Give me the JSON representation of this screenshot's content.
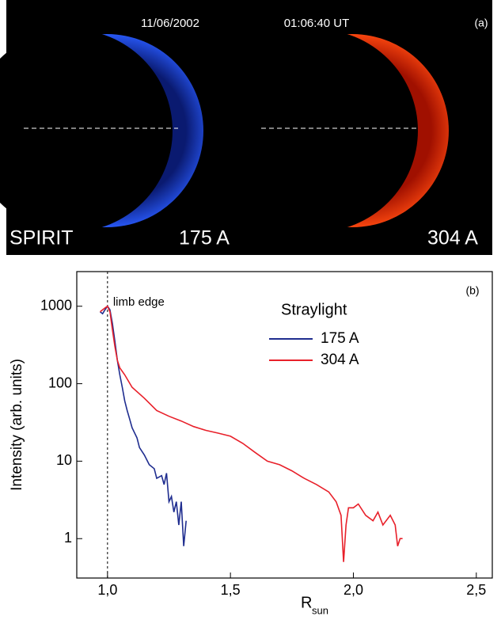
{
  "image_panel": {
    "date": "11/06/2002",
    "time": "01:06:40 UT",
    "label": "(a)",
    "instrument": "SPIRIT",
    "channels": [
      "175 A",
      "304 A"
    ]
  },
  "chart_data": {
    "type": "line",
    "label": "(b)",
    "ylabel": "Intensity (arb. units)",
    "xlabel": "R",
    "xlabel_subscript": "sun",
    "annotation": "limb edge",
    "limb_x": 1.0,
    "legend_title": "Straylight",
    "log_y": true,
    "xlim": [
      0.875,
      2.565
    ],
    "ylim": [
      0.31,
      2800
    ],
    "xticks": [
      {
        "value": 1.0,
        "label": "1,0"
      },
      {
        "value": 1.5,
        "label": "1,5"
      },
      {
        "value": 2.0,
        "label": "2,0"
      },
      {
        "value": 2.5,
        "label": "2,5"
      }
    ],
    "yticks": [
      1,
      10,
      100,
      1000
    ],
    "series": [
      {
        "name": "175 A",
        "color": "#1f2d8f",
        "x": [
          0.97,
          0.98,
          0.99,
          1.0,
          1.01,
          1.02,
          1.03,
          1.04,
          1.05,
          1.06,
          1.07,
          1.08,
          1.09,
          1.1,
          1.12,
          1.13,
          1.15,
          1.17,
          1.19,
          1.2,
          1.22,
          1.23,
          1.24,
          1.25,
          1.26,
          1.27,
          1.28,
          1.29,
          1.3,
          1.31,
          1.32
        ],
        "values": [
          850,
          800,
          900,
          1000,
          900,
          600,
          350,
          200,
          130,
          90,
          60,
          45,
          35,
          27,
          20,
          15,
          12,
          9,
          8,
          6,
          6.5,
          5,
          7,
          3,
          3.5,
          2.2,
          3,
          1.5,
          3,
          0.8,
          1.7
        ]
      },
      {
        "name": "304 A",
        "color": "#e8202a",
        "x": [
          0.97,
          0.99,
          1.0,
          1.01,
          1.02,
          1.03,
          1.04,
          1.05,
          1.07,
          1.1,
          1.15,
          1.2,
          1.25,
          1.3,
          1.35,
          1.4,
          1.45,
          1.5,
          1.55,
          1.6,
          1.65,
          1.7,
          1.75,
          1.8,
          1.85,
          1.9,
          1.93,
          1.95,
          1.96,
          1.97,
          1.98,
          2.0,
          2.02,
          2.05,
          2.08,
          2.1,
          2.12,
          2.15,
          2.17,
          2.18,
          2.19,
          2.2
        ],
        "values": [
          850,
          950,
          1000,
          850,
          500,
          300,
          200,
          160,
          130,
          90,
          65,
          45,
          38,
          33,
          28,
          25,
          23,
          21,
          17,
          13,
          10,
          9,
          7.5,
          6,
          5,
          4,
          3,
          2,
          0.5,
          1.5,
          2.5,
          2.5,
          2.8,
          2,
          1.7,
          2.2,
          1.5,
          2,
          1.5,
          0.8,
          1,
          1
        ]
      }
    ]
  }
}
